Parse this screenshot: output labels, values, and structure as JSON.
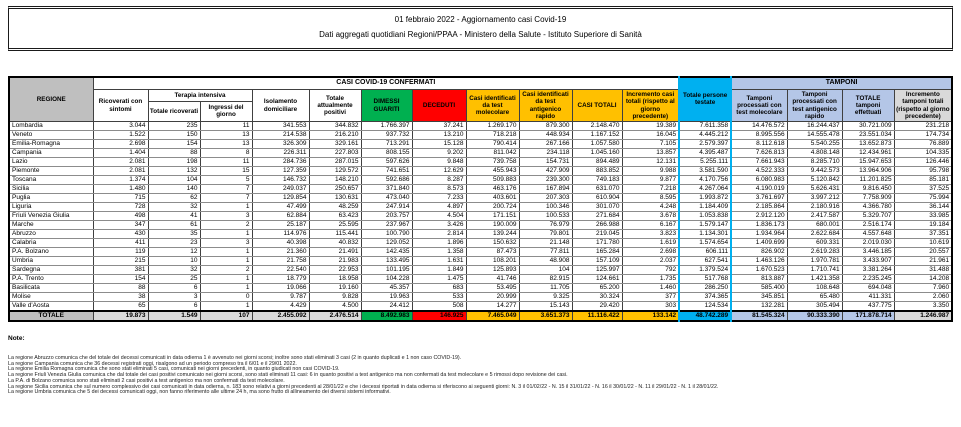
{
  "title": {
    "line1": "01 febbraio 2022 - Aggiornamento casi Covid-19",
    "line2": "Dati aggregati quotidiani Regioni/PPAA - Ministero della Salute - Istituto Superiore di Sanità"
  },
  "table": {
    "region_header": "REGIONE",
    "groups": {
      "casi": "CASI COVID-19 CONFERMATI",
      "terapia": "Terapia intensiva",
      "tamponi": "TAMPONI"
    },
    "columns": {
      "ricoverati": "Ricoverati con sintomi",
      "terapia_totale": "Totale ricoverati",
      "terapia_ingressi": "Ingressi del giorno",
      "isolamento": "Isolamento domiciliare",
      "attualmente": "Totale attualmente positivi",
      "dimessi": "DIMESSI GUARITI",
      "deceduti": "DECEDUTI",
      "casi_molecolare": "Casi identificati da test molecolare",
      "casi_antigenico": "Casi identificati da test antigenico rapido",
      "casi_totali": "CASI TOTALI",
      "incremento_casi": "Incremento casi totali (rispetto al giorno precedente)",
      "persone_testate": "Totale persone testate",
      "tamponi_molecolare": "Tamponi processati con test molecolare",
      "tamponi_antigenico": "Tamponi processati con test antigenico rapido",
      "tamponi_totale": "TOTALE tamponi effettuati",
      "incremento_tamponi": "Incremento tamponi totali (rispetto al giorno precedente)"
    },
    "rows": [
      {
        "region": "Lombardia",
        "values": [
          "3.044",
          "235",
          "11",
          "341.553",
          "344.832",
          "1.766.397",
          "37.241",
          "1.269.170",
          "879.300",
          "2.148.470",
          "19.389",
          "7.611.358",
          "14.476.572",
          "16.244.437",
          "30.721.009",
          "231.218"
        ]
      },
      {
        "region": "Veneto",
        "values": [
          "1.522",
          "150",
          "13",
          "214.538",
          "216.210",
          "937.732",
          "13.210",
          "718.218",
          "448.934",
          "1.167.152",
          "16.045",
          "4.445.212",
          "8.995.556",
          "14.555.478",
          "23.551.034",
          "174.734"
        ]
      },
      {
        "region": "Emilia-Romagna",
        "values": [
          "2.698",
          "154",
          "13",
          "326.309",
          "329.161",
          "713.291",
          "15.128",
          "790.414",
          "267.166",
          "1.057.580",
          "7.105",
          "2.579.397",
          "8.112.618",
          "5.540.255",
          "13.652.873",
          "76.889"
        ]
      },
      {
        "region": "Campania",
        "values": [
          "1.404",
          "88",
          "8",
          "226.311",
          "227.803",
          "808.155",
          "9.202",
          "811.042",
          "234.118",
          "1.045.160",
          "13.857",
          "4.395.487",
          "7.626.813",
          "4.808.148",
          "12.434.961",
          "104.335"
        ]
      },
      {
        "region": "Lazio",
        "values": [
          "2.081",
          "198",
          "11",
          "284.736",
          "287.015",
          "597.626",
          "9.848",
          "739.758",
          "154.731",
          "894.489",
          "12.131",
          "5.255.111",
          "7.661.943",
          "8.285.710",
          "15.947.653",
          "126.446"
        ]
      },
      {
        "region": "Piemonte",
        "values": [
          "2.081",
          "132",
          "15",
          "127.359",
          "129.572",
          "741.651",
          "12.629",
          "455.943",
          "427.909",
          "883.852",
          "9.988",
          "3.581.590",
          "4.522.333",
          "9.442.573",
          "13.964.906",
          "95.798"
        ]
      },
      {
        "region": "Toscana",
        "values": [
          "1.374",
          "104",
          "5",
          "146.732",
          "148.210",
          "592.686",
          "8.287",
          "509.883",
          "239.300",
          "749.183",
          "9.877",
          "4.170.756",
          "6.080.983",
          "5.120.842",
          "11.201.825",
          "85.181"
        ]
      },
      {
        "region": "Sicilia",
        "values": [
          "1.480",
          "140",
          "7",
          "249.037",
          "250.657",
          "371.840",
          "8.573",
          "463.176",
          "167.894",
          "631.070",
          "7.218",
          "4.267.064",
          "4.190.019",
          "5.626.431",
          "9.816.450",
          "37.525"
        ]
      },
      {
        "region": "Puglia",
        "values": [
          "715",
          "62",
          "7",
          "129.854",
          "130.631",
          "473.040",
          "7.233",
          "403.601",
          "207.303",
          "610.904",
          "8.595",
          "1.993.872",
          "3.761.697",
          "3.997.212",
          "7.758.909",
          "75.994"
        ]
      },
      {
        "region": "Liguria",
        "values": [
          "728",
          "32",
          "1",
          "47.499",
          "48.259",
          "247.914",
          "4.897",
          "200.724",
          "100.346",
          "301.070",
          "4.248",
          "1.184.409",
          "2.185.864",
          "2.180.916",
          "4.366.780",
          "36.144"
        ]
      },
      {
        "region": "Friuli Venezia Giulia",
        "values": [
          "498",
          "41",
          "3",
          "62.884",
          "63.423",
          "203.757",
          "4.504",
          "171.151",
          "100.533",
          "271.684",
          "3.678",
          "1.053.838",
          "2.912.120",
          "2.417.587",
          "5.329.707",
          "33.985"
        ]
      },
      {
        "region": "Marche",
        "values": [
          "347",
          "61",
          "2",
          "25.187",
          "25.595",
          "237.967",
          "3.426",
          "190.009",
          "76.979",
          "266.988",
          "6.167",
          "1.579.147",
          "1.836.173",
          "680.001",
          "2.516.174",
          "19.184"
        ]
      },
      {
        "region": "Abruzzo",
        "values": [
          "430",
          "35",
          "1",
          "114.976",
          "115.441",
          "100.790",
          "2.814",
          "139.244",
          "79.801",
          "219.045",
          "3.823",
          "1.134.301",
          "1.934.964",
          "2.622.684",
          "4.557.648",
          "37.351"
        ]
      },
      {
        "region": "Calabria",
        "values": [
          "411",
          "23",
          "3",
          "40.398",
          "40.832",
          "129.052",
          "1.896",
          "150.632",
          "21.148",
          "171.780",
          "1.619",
          "1.574.654",
          "1.409.699",
          "609.331",
          "2.019.030",
          "10.619"
        ]
      },
      {
        "region": "P.A. Bolzano",
        "values": [
          "119",
          "12",
          "1",
          "21.360",
          "21.491",
          "142.435",
          "1.358",
          "87.473",
          "77.811",
          "165.284",
          "2.698",
          "606.111",
          "826.902",
          "2.619.283",
          "3.446.185",
          "20.557"
        ]
      },
      {
        "region": "Umbria",
        "values": [
          "215",
          "10",
          "1",
          "21.758",
          "21.983",
          "133.495",
          "1.631",
          "108.201",
          "48.908",
          "157.109",
          "2.037",
          "627.541",
          "1.463.126",
          "1.970.781",
          "3.433.907",
          "21.961"
        ]
      },
      {
        "region": "Sardegna",
        "values": [
          "381",
          "32",
          "2",
          "22.540",
          "22.953",
          "101.195",
          "1.849",
          "125.893",
          "104",
          "125.997",
          "792",
          "1.379.524",
          "1.670.523",
          "1.710.741",
          "3.381.264",
          "31.488"
        ]
      },
      {
        "region": "P.A. Trento",
        "values": [
          "154",
          "25",
          "1",
          "18.779",
          "18.958",
          "104.228",
          "1.475",
          "41.746",
          "82.915",
          "124.661",
          "1.735",
          "517.768",
          "813.887",
          "1.421.358",
          "2.235.245",
          "14.208"
        ]
      },
      {
        "region": "Basilicata",
        "values": [
          "88",
          "6",
          "1",
          "19.066",
          "19.160",
          "45.357",
          "683",
          "53.495",
          "11.705",
          "65.200",
          "1.460",
          "286.250",
          "585.400",
          "108.648",
          "694.048",
          "7.960"
        ]
      },
      {
        "region": "Molise",
        "values": [
          "38",
          "3",
          "0",
          "9.787",
          "9.828",
          "19.963",
          "533",
          "20.999",
          "9.325",
          "30.324",
          "377",
          "374.365",
          "345.851",
          "65.480",
          "411.331",
          "2.060"
        ]
      },
      {
        "region": "Valle d'Aosta",
        "values": [
          "65",
          "6",
          "1",
          "4.429",
          "4.500",
          "24.412",
          "508",
          "14.277",
          "15.143",
          "29.420",
          "303",
          "124.534",
          "132.281",
          "305.494",
          "437.775",
          "3.350"
        ]
      }
    ],
    "total": {
      "label": "TOTALE",
      "values": [
        "19.873",
        "1.549",
        "107",
        "2.455.092",
        "2.476.514",
        "8.492.983",
        "146.925",
        "7.465.049",
        "3.651.373",
        "11.116.422",
        "133.142",
        "48.742.289",
        "81.545.324",
        "90.333.390",
        "171.878.714",
        "1.246.987"
      ]
    }
  },
  "notes": {
    "title": "Note:",
    "items": [
      "La regione Abruzzo comunica che del totale dei decessi comunicati in data odierna 1 è avvenuto nei giorni scorsi; inoltre sono stati eliminati 3 casi (2 in quanto duplicati e 1 non caso COVID-19).",
      "La regione Campania comunica che 36 decessi registrati oggi, risalgono ad un periodo compreso tra il 6/01 e il 29/01 2022.",
      "La regione Emilia Romagna comunica che sono stati eliminati 5 casi, comunicati nei giorni precedenti, in quanto giudicati non casi COVID-19.",
      "La regione Friuli Venezia Giulia comunica che dal totale dei casi positivi comunicato nei giorni scorsi, sono stati eliminati 11 casi: 6 in quanto positivi a test antigenico ma non confermati da test molecolare e 5 rimossi dopo revisione dei casi.",
      "La P.A. di Bolzano comunica sono stati eliminati 2 casi positivi a test antigenico ma non confermati da test molecolare.",
      "La regione Sicilia comunica che sul numero complessivo dei casi comunicati in data odierna, n. 183 sono relativi a giorni precedenti al 28/01/22 e che i decessi riportati in data odierna si riferiscono ai seguenti giorni: N. 3 il 01/02/22 - N. 15 il 31/01/22 - N. 16 il 30/01/22 - N. 11 il 29/01/22 - N. 1 il 28/01/22.",
      "La regione Umbria comunica che 5 dei decessi comunicati oggi, non fanno riferimento alle ultime 24 h, ma sono frutto di allineamento dei diversi sistemi informativi."
    ]
  },
  "colors": {
    "green": "#00B050",
    "red": "#FF0000",
    "gold": "#FFC000",
    "cyan": "#00B0F0",
    "periwinkle": "#B4C6E7",
    "header_gray": "#BFBFBF",
    "total_gray": "#D9D9D9"
  }
}
